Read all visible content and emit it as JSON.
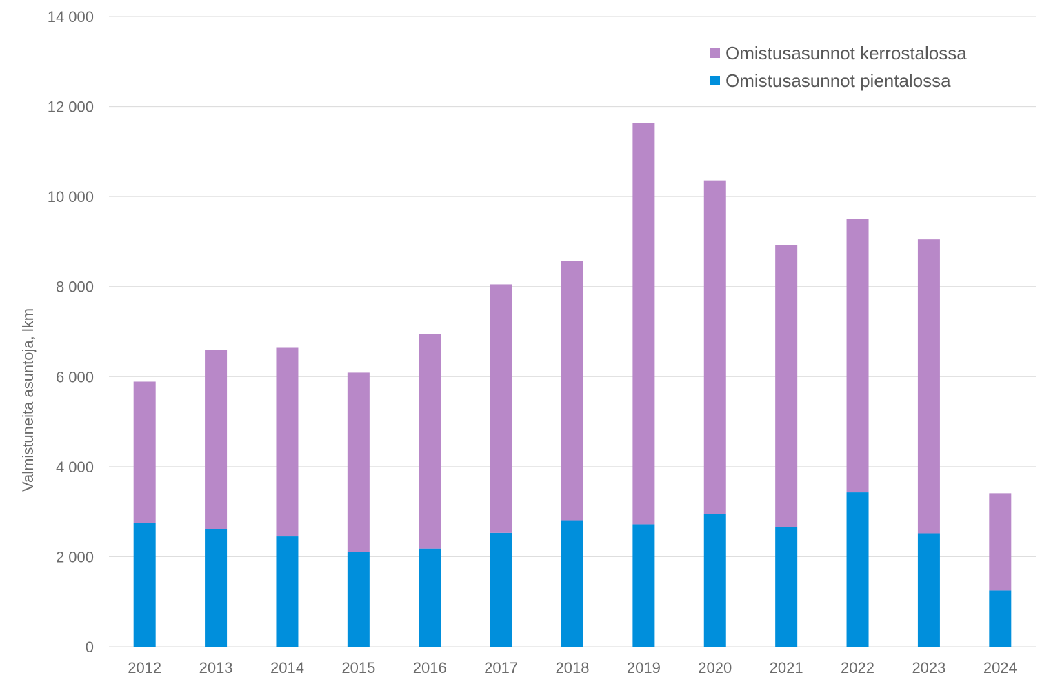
{
  "chart_data": {
    "type": "bar",
    "stacked": true,
    "title": "",
    "xlabel": "",
    "ylabel": "Valmistuneita asuntoja, lkm",
    "ylim": [
      0,
      14000
    ],
    "y_ticks": [
      0,
      2000,
      4000,
      6000,
      8000,
      10000,
      12000,
      14000
    ],
    "y_tick_labels": [
      "0",
      "2 000",
      "4 000",
      "6 000",
      "8 000",
      "10 000",
      "12 000",
      "14 000"
    ],
    "grid": true,
    "legend_position": "top-right",
    "categories": [
      "2012",
      "2013",
      "2014",
      "2015",
      "2016",
      "2017",
      "2018",
      "2019",
      "2020",
      "2021",
      "2022",
      "2023",
      "2024"
    ],
    "series": [
      {
        "name": "Omistusasunnot pientalossa",
        "color": "#008fdc",
        "values": [
          2750,
          2610,
          2450,
          2100,
          2180,
          2530,
          2810,
          2720,
          2950,
          2660,
          3430,
          2520,
          1250
        ]
      },
      {
        "name": "Omistusasunnot kerrostalossa",
        "color": "#b888c8",
        "values": [
          3140,
          3990,
          4190,
          3990,
          4760,
          5520,
          5760,
          8920,
          7410,
          6260,
          6070,
          6530,
          2160
        ]
      }
    ],
    "legend_order": [
      1,
      0
    ]
  }
}
